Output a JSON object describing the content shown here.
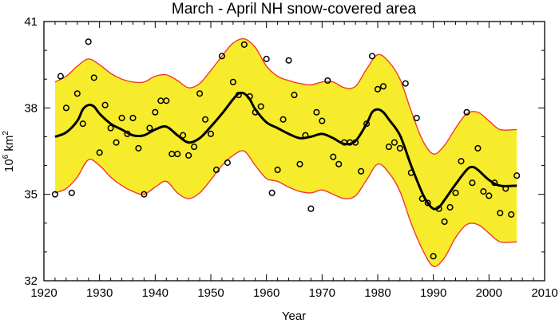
{
  "chart_data": {
    "type": "line",
    "title": "March  - April NH snow-covered area",
    "xlabel": "Year",
    "ylabel": "10⁶ km²",
    "ylabel_base": "10",
    "ylabel_exp": "6",
    "ylabel_unit": " km",
    "ylabel_unit_exp": "2",
    "xlim": [
      1920,
      2010
    ],
    "ylim": [
      32,
      41
    ],
    "x_ticks": [
      1920,
      1930,
      1940,
      1950,
      1960,
      1970,
      1980,
      1990,
      2000,
      2010
    ],
    "y_ticks": [
      32,
      35,
      38,
      41
    ],
    "x_minor_step": 2,
    "y_minor_step": 1,
    "grid": false,
    "colors": {
      "band_fill": "#f7ec2c",
      "band_edge": "#f23a2a",
      "smooth_line": "#000000",
      "points": "#000000"
    },
    "series": [
      {
        "name": "smoothed",
        "style": "line",
        "x": [
          1922,
          1924,
          1926,
          1927,
          1928,
          1929,
          1930,
          1932,
          1934,
          1936,
          1938,
          1940,
          1942,
          1944,
          1946,
          1948,
          1950,
          1952,
          1954,
          1955,
          1956,
          1957,
          1958,
          1960,
          1962,
          1964,
          1966,
          1968,
          1970,
          1972,
          1974,
          1976,
          1978,
          1979,
          1980,
          1981,
          1982,
          1984,
          1986,
          1988,
          1989,
          1990,
          1991,
          1992,
          1994,
          1996,
          1997,
          1998,
          2000,
          2002,
          2005
        ],
        "values": [
          37.0,
          37.15,
          37.55,
          37.95,
          38.1,
          38.05,
          37.8,
          37.45,
          37.25,
          37.05,
          37.05,
          37.25,
          37.35,
          37.05,
          36.8,
          36.95,
          37.35,
          37.8,
          38.3,
          38.5,
          38.5,
          38.3,
          37.95,
          37.5,
          37.3,
          37.1,
          36.95,
          37.0,
          37.1,
          36.95,
          36.75,
          36.85,
          37.45,
          37.85,
          37.95,
          37.85,
          37.6,
          37.05,
          36.0,
          35.05,
          34.7,
          34.5,
          34.55,
          34.8,
          35.35,
          35.85,
          35.95,
          35.85,
          35.5,
          35.3,
          35.3
        ]
      },
      {
        "name": "upper bound",
        "style": "band-edge",
        "x": [
          1922,
          1924,
          1926,
          1928,
          1930,
          1932,
          1934,
          1936,
          1938,
          1940,
          1942,
          1944,
          1946,
          1948,
          1950,
          1952,
          1954,
          1956,
          1958,
          1960,
          1962,
          1964,
          1966,
          1968,
          1970,
          1972,
          1974,
          1976,
          1978,
          1980,
          1982,
          1984,
          1986,
          1988,
          1990,
          1992,
          1994,
          1996,
          1998,
          2000,
          2002,
          2005
        ],
        "values": [
          38.9,
          39.1,
          39.45,
          39.7,
          39.5,
          39.2,
          39.0,
          38.9,
          38.9,
          39.1,
          39.15,
          38.95,
          38.7,
          38.85,
          39.3,
          39.8,
          40.25,
          40.4,
          40.1,
          39.45,
          39.1,
          38.95,
          38.85,
          38.8,
          38.9,
          38.9,
          38.7,
          38.75,
          39.35,
          39.85,
          39.6,
          39.0,
          37.9,
          36.9,
          36.4,
          36.7,
          37.3,
          37.8,
          37.85,
          37.55,
          37.25,
          37.25
        ]
      },
      {
        "name": "lower bound",
        "style": "band-edge",
        "x": [
          1922,
          1924,
          1926,
          1928,
          1930,
          1932,
          1934,
          1936,
          1938,
          1940,
          1942,
          1944,
          1946,
          1948,
          1950,
          1952,
          1954,
          1956,
          1958,
          1960,
          1962,
          1964,
          1966,
          1968,
          1970,
          1972,
          1974,
          1976,
          1978,
          1980,
          1982,
          1984,
          1986,
          1988,
          1990,
          1992,
          1994,
          1996,
          1998,
          2000,
          2002,
          2005
        ],
        "values": [
          35.05,
          35.2,
          35.6,
          36.2,
          36.0,
          35.6,
          35.3,
          35.1,
          35.0,
          35.25,
          35.45,
          35.05,
          34.85,
          35.05,
          35.5,
          36.0,
          36.35,
          36.5,
          36.0,
          35.55,
          35.45,
          35.25,
          35.1,
          35.05,
          35.15,
          35.0,
          34.85,
          34.95,
          35.5,
          36.05,
          35.75,
          35.1,
          34.0,
          33.1,
          32.5,
          32.8,
          33.5,
          33.95,
          33.95,
          33.65,
          33.35,
          33.35
        ]
      },
      {
        "name": "annual values",
        "style": "points",
        "x": [
          1922,
          1923,
          1924,
          1925,
          1926,
          1927,
          1928,
          1929,
          1930,
          1931,
          1932,
          1933,
          1934,
          1935,
          1936,
          1937,
          1938,
          1939,
          1940,
          1941,
          1942,
          1943,
          1944,
          1945,
          1946,
          1947,
          1948,
          1949,
          1950,
          1951,
          1952,
          1953,
          1954,
          1955,
          1956,
          1957,
          1958,
          1959,
          1960,
          1961,
          1962,
          1963,
          1964,
          1965,
          1966,
          1967,
          1968,
          1969,
          1970,
          1971,
          1972,
          1973,
          1974,
          1975,
          1976,
          1977,
          1978,
          1979,
          1980,
          1981,
          1982,
          1983,
          1984,
          1985,
          1986,
          1987,
          1988,
          1989,
          1990,
          1991,
          1992,
          1993,
          1994,
          1995,
          1996,
          1997,
          1998,
          1999,
          2000,
          2001,
          2002,
          2003,
          2004,
          2005
        ],
        "values": [
          35.0,
          39.1,
          38.0,
          35.05,
          38.5,
          37.45,
          40.3,
          39.05,
          36.45,
          38.1,
          37.3,
          36.8,
          37.65,
          37.1,
          37.65,
          36.6,
          35.0,
          37.3,
          37.85,
          38.25,
          38.25,
          36.4,
          36.4,
          37.05,
          36.35,
          36.65,
          38.5,
          37.6,
          37.1,
          35.85,
          39.8,
          36.1,
          38.9,
          38.45,
          40.2,
          38.4,
          37.85,
          38.05,
          39.7,
          35.05,
          35.85,
          37.6,
          39.65,
          38.45,
          36.05,
          37.05,
          34.5,
          37.85,
          37.55,
          38.95,
          36.3,
          36.05,
          36.8,
          36.8,
          36.8,
          35.8,
          37.45,
          39.8,
          38.65,
          38.75,
          36.65,
          36.8,
          36.6,
          38.85,
          35.75,
          37.65,
          34.85,
          34.7,
          32.85,
          34.5,
          34.05,
          34.55,
          35.05,
          36.15,
          37.85,
          35.4,
          36.6,
          35.1,
          34.95,
          35.4,
          34.35,
          35.2,
          34.3,
          35.65
        ]
      }
    ]
  }
}
